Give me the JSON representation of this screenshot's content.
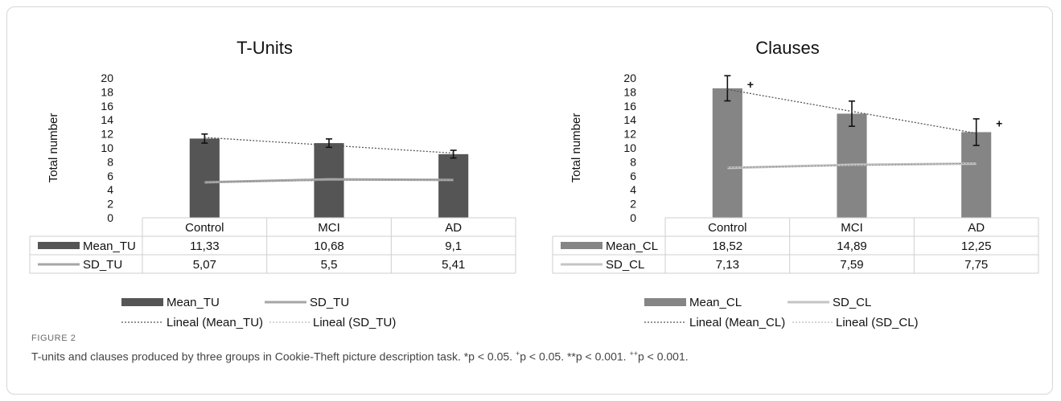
{
  "figure": {
    "label": "FIGURE 2",
    "caption_parts": {
      "main": "T-units and clauses produced by three groups in Cookie-Theft picture description task. *p < 0.05. ",
      "plus_sup": "+",
      "p1": "p < 0.05. **p < 0.001. ",
      "plusplus_sup": "++",
      "p2": "p < 0.001."
    }
  },
  "chart_data": [
    {
      "type": "bar",
      "title": "T-Units",
      "ylabel": "Total number",
      "xlabel": "",
      "ylim": [
        0,
        20
      ],
      "yticks": [
        "0",
        "2",
        "4",
        "6",
        "8",
        "10",
        "12",
        "14",
        "16",
        "18",
        "20"
      ],
      "categories": [
        "Control",
        "MCI",
        "AD"
      ],
      "series": [
        {
          "name": "Mean_TU",
          "kind": "bar",
          "values": [
            11.33,
            10.68,
            9.1
          ],
          "labels": [
            "11,33",
            "10,68",
            "9,1"
          ],
          "color": "#555555",
          "error": [
            0.65,
            0.6,
            0.55
          ]
        },
        {
          "name": "SD_TU",
          "kind": "line",
          "values": [
            5.07,
            5.5,
            5.41
          ],
          "labels": [
            "5,07",
            "5,5",
            "5,41"
          ],
          "color": "#a6a6a6"
        }
      ],
      "markers": [
        "",
        "",
        ""
      ],
      "legend": {
        "bar_label": "Mean_TU",
        "line_label": "SD_TU",
        "trend1_label": "Lineal (Mean_TU)",
        "trend2_label": "Lineal (SD_TU)",
        "bar_color": "#555555",
        "line_color": "#a6a6a6"
      },
      "grid": false,
      "legend_position": "bottom"
    },
    {
      "type": "bar",
      "title": "Clauses",
      "ylabel": "Total number",
      "xlabel": "",
      "ylim": [
        0,
        20
      ],
      "yticks": [
        "0",
        "2",
        "4",
        "6",
        "8",
        "10",
        "12",
        "14",
        "16",
        "18",
        "20"
      ],
      "categories": [
        "Control",
        "MCI",
        "AD"
      ],
      "series": [
        {
          "name": "Mean_CL",
          "kind": "bar",
          "values": [
            18.52,
            14.89,
            12.25
          ],
          "labels": [
            "18,52",
            "14,89",
            "12,25"
          ],
          "color": "#858585",
          "error": [
            1.8,
            1.8,
            1.9
          ]
        },
        {
          "name": "SD_CL",
          "kind": "line",
          "values": [
            7.13,
            7.59,
            7.75
          ],
          "labels": [
            "7,13",
            "7,59",
            "7,75"
          ],
          "color": "#c4c4c4"
        }
      ],
      "markers": [
        "+",
        "",
        "+"
      ],
      "legend": {
        "bar_label": "Mean_CL",
        "line_label": "SD_CL",
        "trend1_label": "Lineal (Mean_CL)",
        "trend2_label": "Lineal (SD_CL)",
        "bar_color": "#858585",
        "line_color": "#c4c4c4"
      },
      "grid": false,
      "legend_position": "bottom"
    }
  ]
}
